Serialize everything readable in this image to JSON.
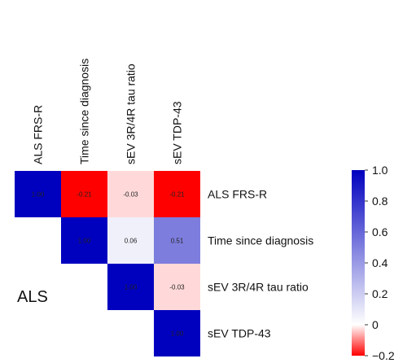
{
  "chart_data": {
    "type": "heatmap",
    "title": "",
    "subtitle": "",
    "group_label": "ALS",
    "variables": [
      "ALS FRS-R",
      "Time since diagnosis",
      "sEV 3R/4R tau ratio",
      "sEV TDP-43"
    ],
    "layout": "upper-triangle",
    "matrix": [
      [
        1.0,
        -0.21,
        -0.03,
        -0.21
      ],
      [
        null,
        1.0,
        0.06,
        0.51
      ],
      [
        null,
        null,
        1.0,
        -0.03
      ],
      [
        null,
        null,
        null,
        1.0
      ]
    ],
    "cell_labels": [
      [
        "1.00",
        "-0.21",
        "-0.03",
        "-0.21"
      ],
      [
        null,
        "1.00",
        "0.06",
        "0.51"
      ],
      [
        null,
        null,
        "1.00",
        "-0.03"
      ],
      [
        null,
        null,
        null,
        "1.00"
      ]
    ],
    "colorbar": {
      "range": [
        -0.2,
        1.0
      ],
      "ticks": [
        1.0,
        0.8,
        0.6,
        0.4,
        0.2,
        0,
        -0.2
      ],
      "tick_labels": [
        "1.0",
        "0.8",
        "0.6",
        "0.4",
        "0.2",
        "0",
        "−0.2"
      ],
      "colors": {
        "low": "#ff0000",
        "mid": "#ffffff",
        "high": "#0000bf"
      },
      "placement": "right"
    }
  }
}
